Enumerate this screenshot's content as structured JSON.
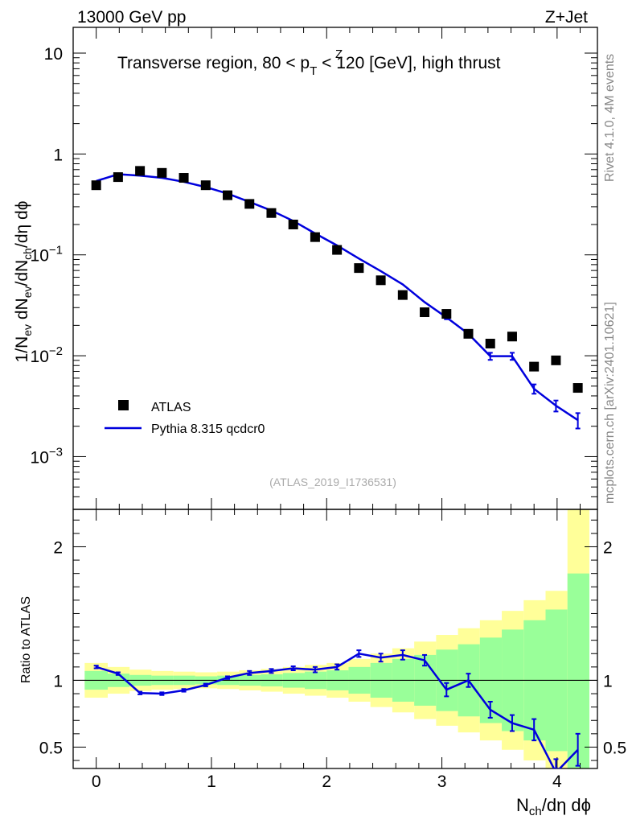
{
  "header": {
    "left": "13000 GeV pp",
    "right": "Z+Jet"
  },
  "side_labels": {
    "rivet": "Rivet 4.1.0,  4M events",
    "mcplots": "mcplots.cern.ch [arXiv:2401.10621]"
  },
  "colors": {
    "data": "#000000",
    "mc": "#0000dd",
    "band_outer": "#ffff99",
    "band_inner": "#99ff99"
  },
  "chart_data": [
    {
      "type": "scatter",
      "title": "Transverse region, 80 < p",
      "title_sup": "Z",
      "title_sub": "T",
      "title_rest": " < 120 [GeV], high thrust",
      "ylabel": "1/N",
      "ylabel_parts": [
        "1/N",
        "ev",
        " dN",
        "ev",
        "/dN",
        "ch",
        "/dη dϕ"
      ],
      "yscale": "log",
      "ylim": [
        0.0003,
        18
      ],
      "xlim": [
        -0.2,
        4.35
      ],
      "x_ticks": [
        0,
        1,
        2,
        3,
        4
      ],
      "y_ticks": [
        {
          "value": 0.001,
          "base": "10",
          "exp": "−3"
        },
        {
          "value": 0.01,
          "base": "10",
          "exp": "−2"
        },
        {
          "value": 0.1,
          "base": "10",
          "exp": "−1"
        },
        {
          "value": 1,
          "base": "1",
          "exp": ""
        },
        {
          "value": 10,
          "base": "10",
          "exp": ""
        }
      ],
      "watermark": "(ATLAS_2019_I1736531)",
      "x": [
        0,
        0.19,
        0.38,
        0.57,
        0.76,
        0.95,
        1.14,
        1.33,
        1.52,
        1.71,
        1.9,
        2.09,
        2.28,
        2.47,
        2.66,
        2.85,
        3.04,
        3.23,
        3.42,
        3.61,
        3.8,
        3.99,
        4.18
      ],
      "series": [
        {
          "name": "ATLAS",
          "style": "markers",
          "values": [
            0.49,
            0.59,
            0.68,
            0.65,
            0.58,
            0.49,
            0.39,
            0.32,
            0.26,
            0.2,
            0.15,
            0.112,
            0.074,
            0.056,
            0.04,
            0.027,
            0.026,
            0.0165,
            0.0132,
            0.0155,
            0.0078,
            0.009,
            0.0048
          ]
        },
        {
          "name": "Pythia 8.315 qcdcr0",
          "style": "line",
          "values": [
            0.54,
            0.63,
            0.61,
            0.58,
            0.53,
            0.47,
            0.405,
            0.335,
            0.275,
            0.217,
            0.163,
            0.124,
            0.092,
            0.069,
            0.051,
            0.034,
            0.024,
            0.0165,
            0.0099,
            0.0099,
            0.0047,
            0.0032,
            0.0023
          ],
          "errors": [
            0,
            0,
            0,
            0,
            0,
            0,
            0,
            0,
            0,
            0,
            0,
            0,
            0,
            0,
            0,
            0,
            0.001,
            0.0008,
            0.0008,
            0.0008,
            0.0005,
            0.0004,
            0.0004
          ]
        }
      ]
    },
    {
      "type": "line",
      "title": "",
      "ylabel": "Ratio to ATLAS",
      "xlabel": "N",
      "xlabel_parts": [
        "N",
        "ch",
        "/dη dϕ"
      ],
      "ylim": [
        0.34,
        2.28
      ],
      "xlim": [
        -0.2,
        4.35
      ],
      "x_ticks": [
        0,
        1,
        2,
        3,
        4
      ],
      "y_ticks": [
        0.5,
        1,
        2
      ],
      "bin_edges": [
        -0.1,
        0.1,
        0.29,
        0.48,
        0.67,
        0.86,
        1.05,
        1.24,
        1.43,
        1.62,
        1.81,
        2.0,
        2.19,
        2.38,
        2.57,
        2.76,
        2.95,
        3.14,
        3.33,
        3.52,
        3.71,
        3.9,
        4.09,
        4.28
      ],
      "band_outer_lo": [
        0.87,
        0.9,
        0.92,
        0.93,
        0.935,
        0.94,
        0.935,
        0.925,
        0.915,
        0.9,
        0.885,
        0.87,
        0.84,
        0.8,
        0.76,
        0.71,
        0.66,
        0.61,
        0.55,
        0.48,
        0.4,
        0.34,
        0.34
      ],
      "band_outer_hi": [
        1.13,
        1.1,
        1.08,
        1.07,
        1.065,
        1.06,
        1.065,
        1.075,
        1.085,
        1.1,
        1.115,
        1.13,
        1.16,
        1.2,
        1.24,
        1.29,
        1.34,
        1.39,
        1.45,
        1.52,
        1.6,
        1.67,
        2.28
      ],
      "band_inner_lo": [
        0.93,
        0.95,
        0.96,
        0.965,
        0.965,
        0.97,
        0.965,
        0.96,
        0.955,
        0.945,
        0.935,
        0.925,
        0.9,
        0.87,
        0.84,
        0.81,
        0.77,
        0.73,
        0.68,
        0.62,
        0.55,
        0.47,
        0.34
      ],
      "band_inner_hi": [
        1.07,
        1.05,
        1.04,
        1.035,
        1.035,
        1.03,
        1.035,
        1.04,
        1.045,
        1.055,
        1.065,
        1.075,
        1.1,
        1.13,
        1.16,
        1.19,
        1.23,
        1.27,
        1.32,
        1.38,
        1.45,
        1.53,
        1.8
      ],
      "x": [
        0,
        0.19,
        0.38,
        0.57,
        0.76,
        0.95,
        1.14,
        1.33,
        1.52,
        1.71,
        1.9,
        2.09,
        2.28,
        2.47,
        2.66,
        2.85,
        3.04,
        3.23,
        3.42,
        3.61,
        3.8,
        3.99,
        4.18
      ],
      "series": [
        {
          "name": "Pythia 8.315 qcdcr0",
          "values": [
            1.1,
            1.05,
            0.905,
            0.9,
            0.925,
            0.965,
            1.02,
            1.055,
            1.07,
            1.09,
            1.08,
            1.1,
            1.2,
            1.17,
            1.19,
            1.15,
            0.93,
            1.0,
            0.78,
            0.68,
            0.63,
            0.31,
            0.48
          ],
          "errors": [
            0.01,
            0.01,
            0.01,
            0.01,
            0.01,
            0.01,
            0.01,
            0.015,
            0.015,
            0.015,
            0.02,
            0.02,
            0.025,
            0.03,
            0.035,
            0.04,
            0.05,
            0.05,
            0.06,
            0.06,
            0.08,
            0.1,
            0.12
          ]
        }
      ]
    }
  ]
}
